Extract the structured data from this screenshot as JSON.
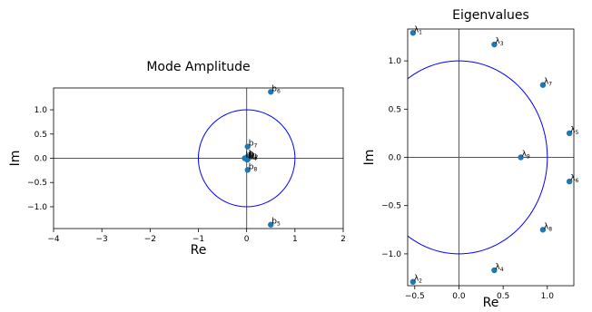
{
  "colors": {
    "point": "#1f77b4",
    "circle": "#0000ff",
    "axes_lines": "#555555",
    "frame": "#000000"
  },
  "chart_data": [
    {
      "type": "scatter",
      "title": "Mode Amplitude",
      "xlabel": "Re",
      "ylabel": "Im",
      "xlim": [
        -4,
        2
      ],
      "ylim": [
        -1.45,
        1.45
      ],
      "xticks": [
        -4,
        -3,
        -2,
        -1,
        0,
        1,
        2
      ],
      "xtick_labels": [
        "−4",
        "−3",
        "−2",
        "−1",
        "0",
        "1",
        "2"
      ],
      "yticks": [
        -1.0,
        -0.5,
        0.0,
        0.5,
        1.0
      ],
      "ytick_labels": [
        "−1.0",
        "−0.5",
        "0.0",
        "0.5",
        "1.0"
      ],
      "unit_circle": true,
      "grid": false,
      "points": [
        {
          "x": 0.5,
          "y": 1.37,
          "label": "b",
          "sub": "6"
        },
        {
          "x": 0.02,
          "y": 0.24,
          "label": "b",
          "sub": "7"
        },
        {
          "x": 0.02,
          "y": -0.24,
          "label": "b",
          "sub": "8"
        },
        {
          "x": 0.5,
          "y": -1.37,
          "label": "b",
          "sub": "5"
        },
        {
          "x": 0.02,
          "y": 0.03,
          "label": "b",
          "sub": "1"
        },
        {
          "x": 0.04,
          "y": 0.01,
          "label": "b",
          "sub": "2"
        },
        {
          "x": 0.03,
          "y": -0.01,
          "label": "b",
          "sub": "3"
        },
        {
          "x": 0.01,
          "y": -0.03,
          "label": "b",
          "sub": "4"
        },
        {
          "x": -0.04,
          "y": 0.0,
          "label": "b",
          "sub": "9"
        }
      ]
    },
    {
      "type": "scatter",
      "title": "Eigenvalues",
      "xlabel": "Re",
      "ylabel": "Im",
      "xlim": [
        -0.58,
        1.3
      ],
      "ylim": [
        -1.33,
        1.33
      ],
      "xticks": [
        -0.5,
        0.0,
        0.5,
        1.0
      ],
      "xtick_labels": [
        "−0.5",
        "0.0",
        "0.5",
        "1.0"
      ],
      "yticks": [
        -1.0,
        -0.5,
        0.0,
        0.5,
        1.0
      ],
      "ytick_labels": [
        "−1.0",
        "−0.5",
        "0.0",
        "0.5",
        "1.0"
      ],
      "unit_circle": true,
      "grid": false,
      "points": [
        {
          "x": -0.52,
          "y": 1.29,
          "label": "λ",
          "sub": "1"
        },
        {
          "x": -0.52,
          "y": -1.29,
          "label": "λ",
          "sub": "2"
        },
        {
          "x": 0.4,
          "y": 1.17,
          "label": "λ",
          "sub": "3"
        },
        {
          "x": 0.4,
          "y": -1.17,
          "label": "λ",
          "sub": "4"
        },
        {
          "x": 1.25,
          "y": 0.25,
          "label": "λ",
          "sub": "5"
        },
        {
          "x": 1.25,
          "y": -0.25,
          "label": "λ",
          "sub": "6"
        },
        {
          "x": 0.95,
          "y": 0.75,
          "label": "λ",
          "sub": "7"
        },
        {
          "x": 0.95,
          "y": -0.75,
          "label": "λ",
          "sub": "8"
        },
        {
          "x": 0.7,
          "y": 0.0,
          "label": "λ",
          "sub": "9"
        }
      ]
    }
  ]
}
